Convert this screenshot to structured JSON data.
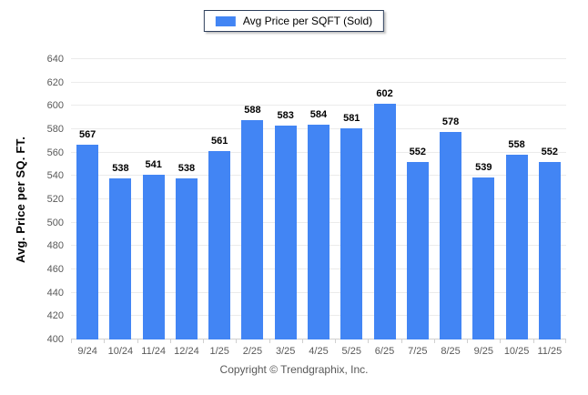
{
  "footer": {
    "copyright": "Copyright © Trendgraphix, Inc."
  },
  "colors": {
    "bar": "#4285f4",
    "legend_border": "#2e3f5c",
    "gridline": "#ebebeb",
    "axis_line": "#d0d0d0",
    "tick_label_text": "#595959"
  },
  "chart_data": {
    "type": "bar",
    "title": "",
    "legend_label": "Avg Price per SQFT (Sold)",
    "legend_position": "top-center",
    "categories": [
      "9/24",
      "10/24",
      "11/24",
      "12/24",
      "1/25",
      "2/25",
      "3/25",
      "4/25",
      "5/25",
      "6/25",
      "7/25",
      "8/25",
      "9/25",
      "10/25",
      "11/25"
    ],
    "values": [
      567,
      538,
      541,
      538,
      561,
      588,
      583,
      584,
      581,
      602,
      552,
      578,
      539,
      558,
      552
    ],
    "xlabel": "",
    "ylabel": "Avg. Price per SQ. FT.",
    "ylim": [
      400,
      640
    ],
    "yticks": [
      400,
      420,
      440,
      460,
      480,
      500,
      520,
      540,
      560,
      580,
      600,
      620,
      640
    ],
    "grid": true
  }
}
